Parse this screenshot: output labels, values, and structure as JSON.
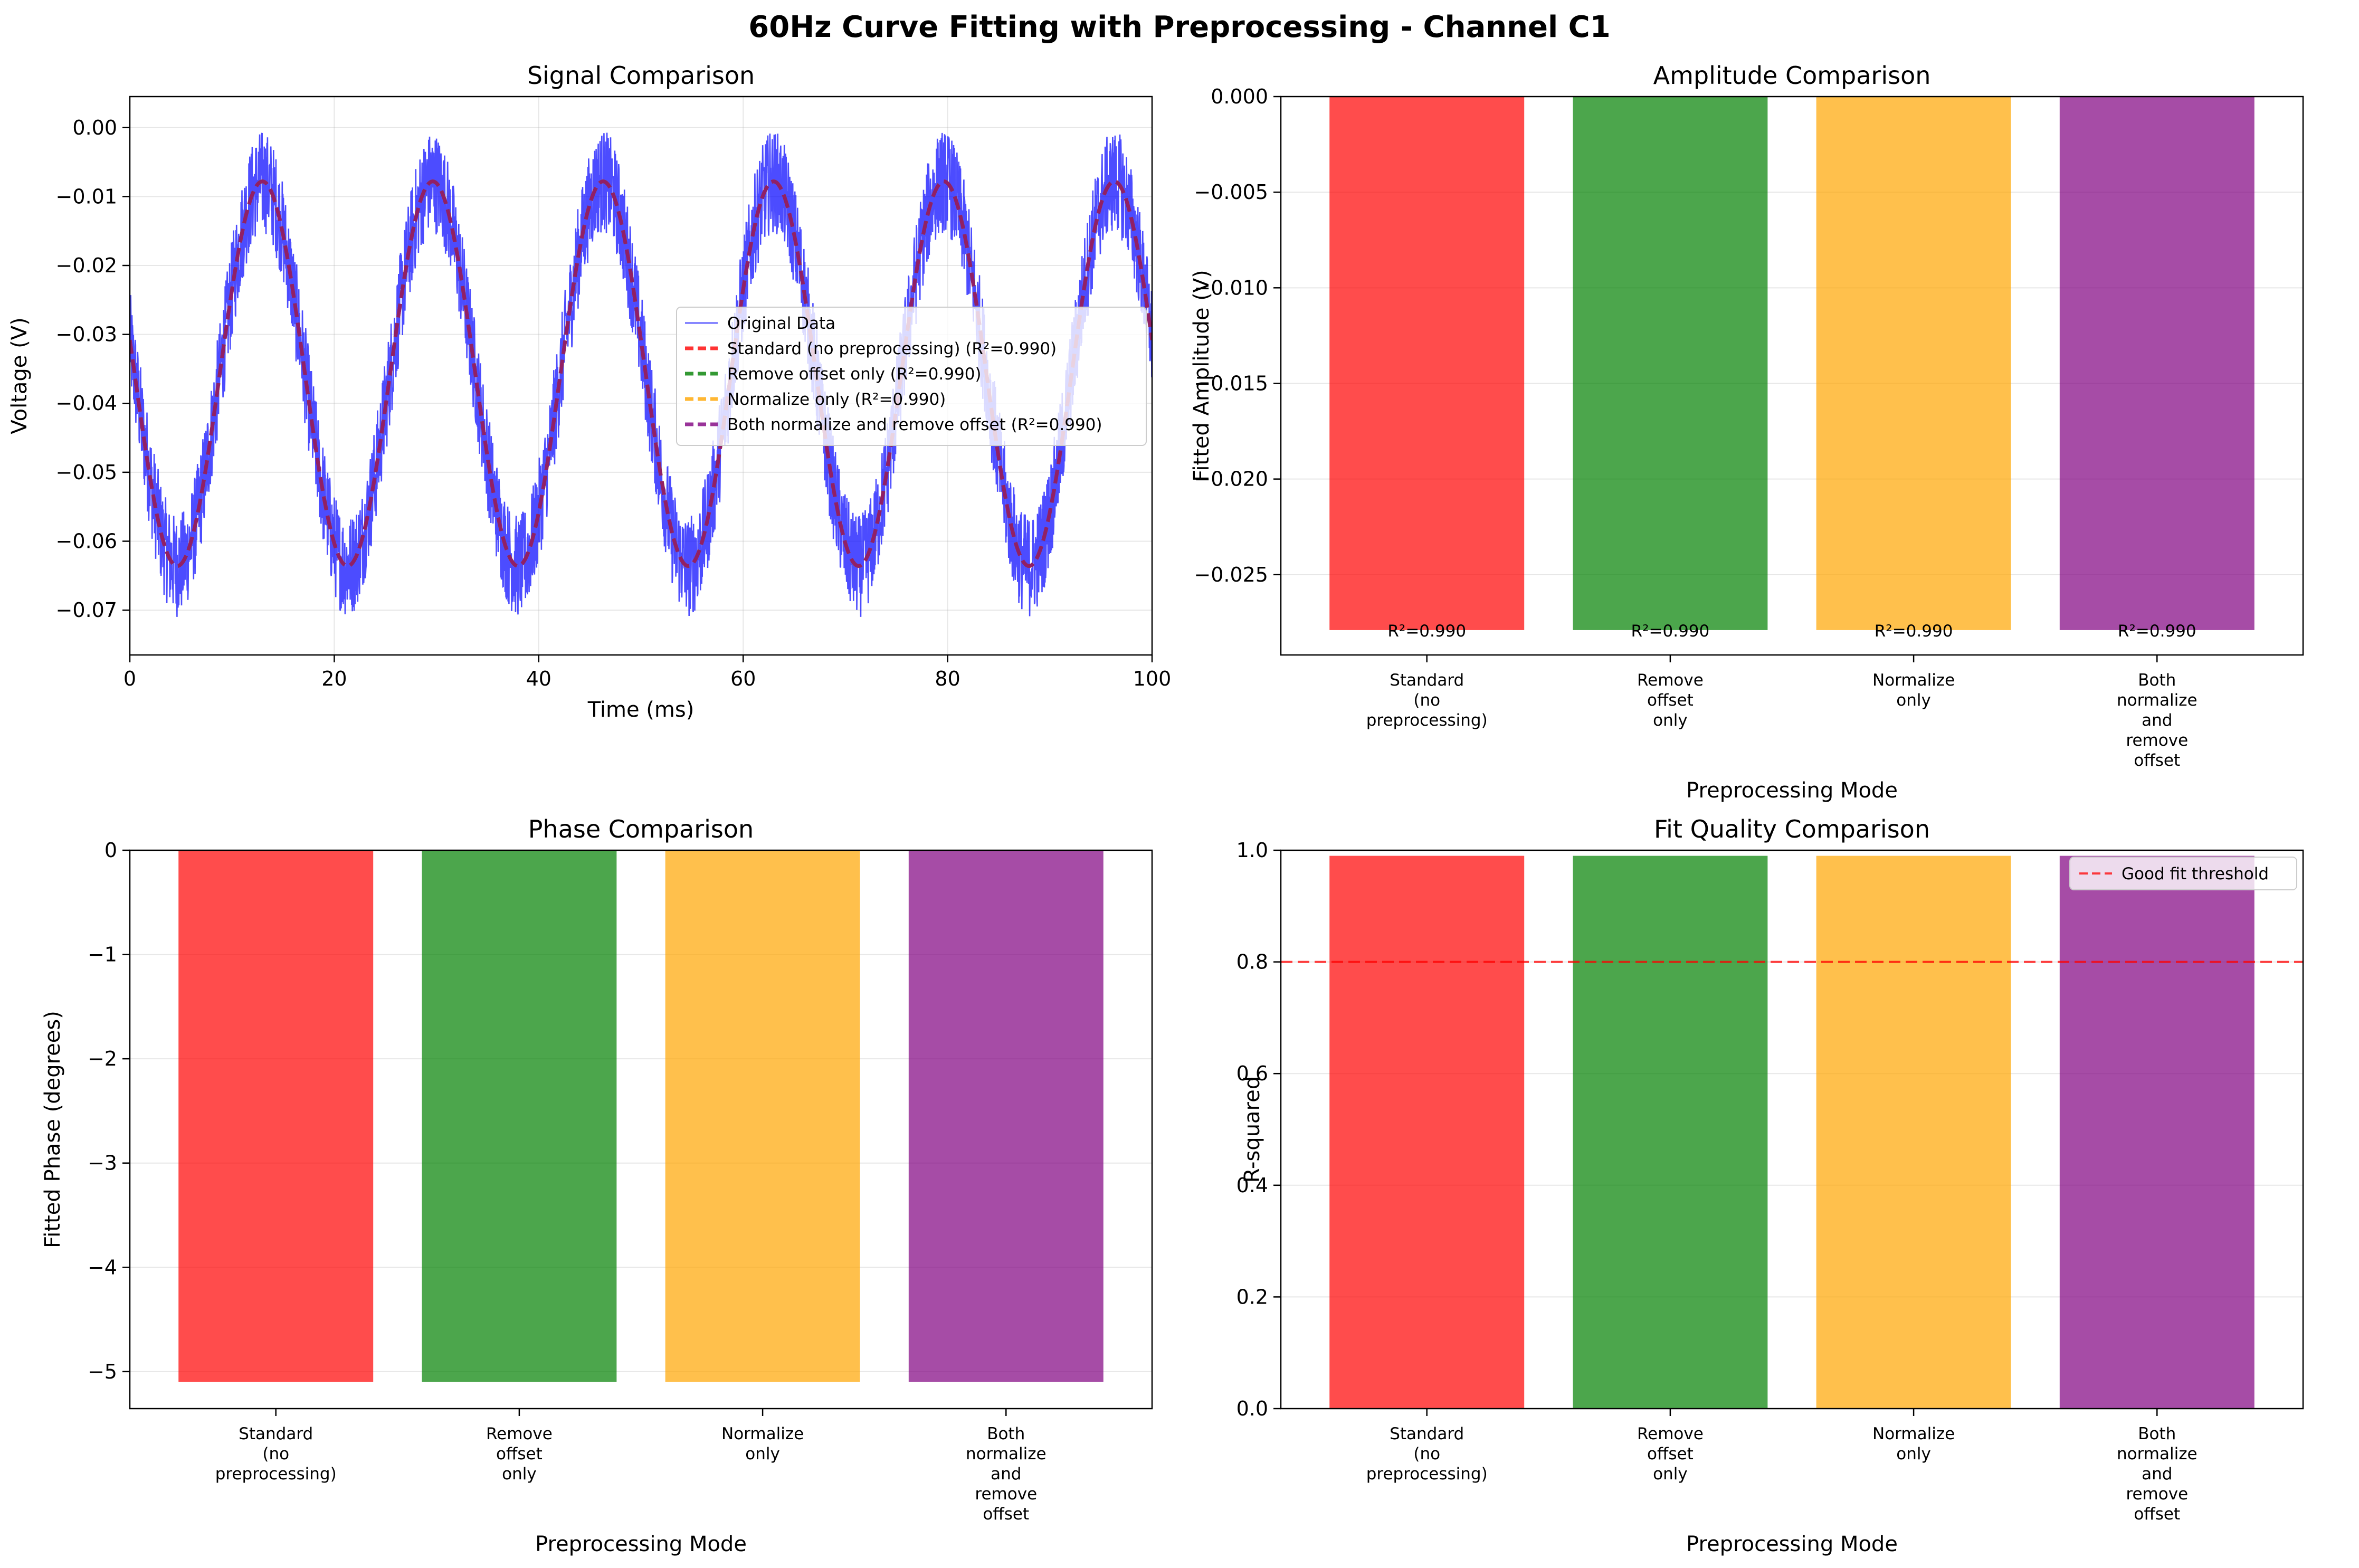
{
  "figure": {
    "suptitle": "60Hz Curve Fitting with Preprocessing - Channel C1"
  },
  "colors": {
    "standard": "#ff0000",
    "remove_offset": "#008000",
    "normalize": "#ffa500",
    "both": "#800080",
    "original": "#0000ff",
    "threshold": "#ff0000"
  },
  "chart_data": [
    {
      "id": "signal",
      "type": "line",
      "title": "Signal Comparison",
      "xlabel": "Time (ms)",
      "ylabel": "Voltage (V)",
      "xlim": [
        0,
        100
      ],
      "ylim": [
        -0.0765,
        0.0045
      ],
      "xticks": [
        0,
        20,
        40,
        60,
        80,
        100
      ],
      "xtick_labels": [
        "0",
        "20",
        "40",
        "60",
        "80",
        "100"
      ],
      "yticks": [
        0.0,
        -0.01,
        -0.02,
        -0.03,
        -0.04,
        -0.05,
        -0.06,
        -0.07
      ],
      "ytick_labels": [
        "0.00",
        "−0.01",
        "−0.02",
        "−0.03",
        "−0.04",
        "−0.05",
        "−0.06",
        "−0.07"
      ],
      "grid": true,
      "legend_position": "center-right",
      "signal_model": {
        "frequency_hz": 60,
        "offset_v": -0.0357,
        "amplitude_v": 0.0279,
        "phase_deg": -5.1,
        "noise_peak_v": 0.0075
      },
      "series": [
        {
          "name": "Original Data",
          "style": "solid"
        },
        {
          "name": "Standard (no preprocessing) (R²=0.990)",
          "style": "dashed"
        },
        {
          "name": "Remove offset only (R²=0.990)",
          "style": "dashed"
        },
        {
          "name": "Normalize only (R²=0.990)",
          "style": "dashed"
        },
        {
          "name": "Both normalize and remove offset (R²=0.990)",
          "style": "dashed"
        }
      ]
    },
    {
      "id": "amplitude",
      "type": "bar",
      "title": "Amplitude Comparison",
      "xlabel": "Preprocessing Mode",
      "ylabel": "Fitted Amplitude (V)",
      "ylim": [
        -0.0292,
        0.0
      ],
      "yticks": [
        0.0,
        -0.005,
        -0.01,
        -0.015,
        -0.02,
        -0.025
      ],
      "ytick_labels": [
        "0.000",
        "−0.005",
        "−0.010",
        "−0.015",
        "−0.020",
        "−0.025"
      ],
      "grid": true,
      "categories": [
        [
          "Standard",
          "(no",
          "preprocessing)"
        ],
        [
          "Remove",
          "offset",
          "only"
        ],
        [
          "Normalize",
          "only"
        ],
        [
          "Both",
          "normalize",
          "and",
          "remove",
          "offset"
        ]
      ],
      "values": [
        -0.0279,
        -0.0279,
        -0.0279,
        -0.0279
      ],
      "bar_labels": [
        "R²=0.990",
        "R²=0.990",
        "R²=0.990",
        "R²=0.990"
      ]
    },
    {
      "id": "phase",
      "type": "bar",
      "title": "Phase Comparison",
      "xlabel": "Preprocessing Mode",
      "ylabel": "Fitted Phase (degrees)",
      "ylim": [
        -5.355,
        0.0
      ],
      "yticks": [
        0,
        -1,
        -2,
        -3,
        -4,
        -5
      ],
      "ytick_labels": [
        "0",
        "−1",
        "−2",
        "−3",
        "−4",
        "−5"
      ],
      "grid": true,
      "categories": [
        [
          "Standard",
          "(no",
          "preprocessing)"
        ],
        [
          "Remove",
          "offset",
          "only"
        ],
        [
          "Normalize",
          "only"
        ],
        [
          "Both",
          "normalize",
          "and",
          "remove",
          "offset"
        ]
      ],
      "values": [
        -5.1,
        -5.1,
        -5.1,
        -5.1
      ]
    },
    {
      "id": "fitquality",
      "type": "bar",
      "title": "Fit Quality Comparison",
      "xlabel": "Preprocessing Mode",
      "ylabel": "R-squared",
      "ylim": [
        0.0,
        1.0
      ],
      "yticks": [
        0.0,
        0.2,
        0.4,
        0.6,
        0.8,
        1.0
      ],
      "ytick_labels": [
        "0.0",
        "0.2",
        "0.4",
        "0.6",
        "0.8",
        "1.0"
      ],
      "grid": true,
      "legend_position": "upper-right",
      "categories": [
        [
          "Standard",
          "(no",
          "preprocessing)"
        ],
        [
          "Remove",
          "offset",
          "only"
        ],
        [
          "Normalize",
          "only"
        ],
        [
          "Both",
          "normalize",
          "and",
          "remove",
          "offset"
        ]
      ],
      "values": [
        0.99,
        0.99,
        0.99,
        0.99
      ],
      "threshold": 0.8,
      "threshold_label": "Good fit threshold"
    }
  ]
}
